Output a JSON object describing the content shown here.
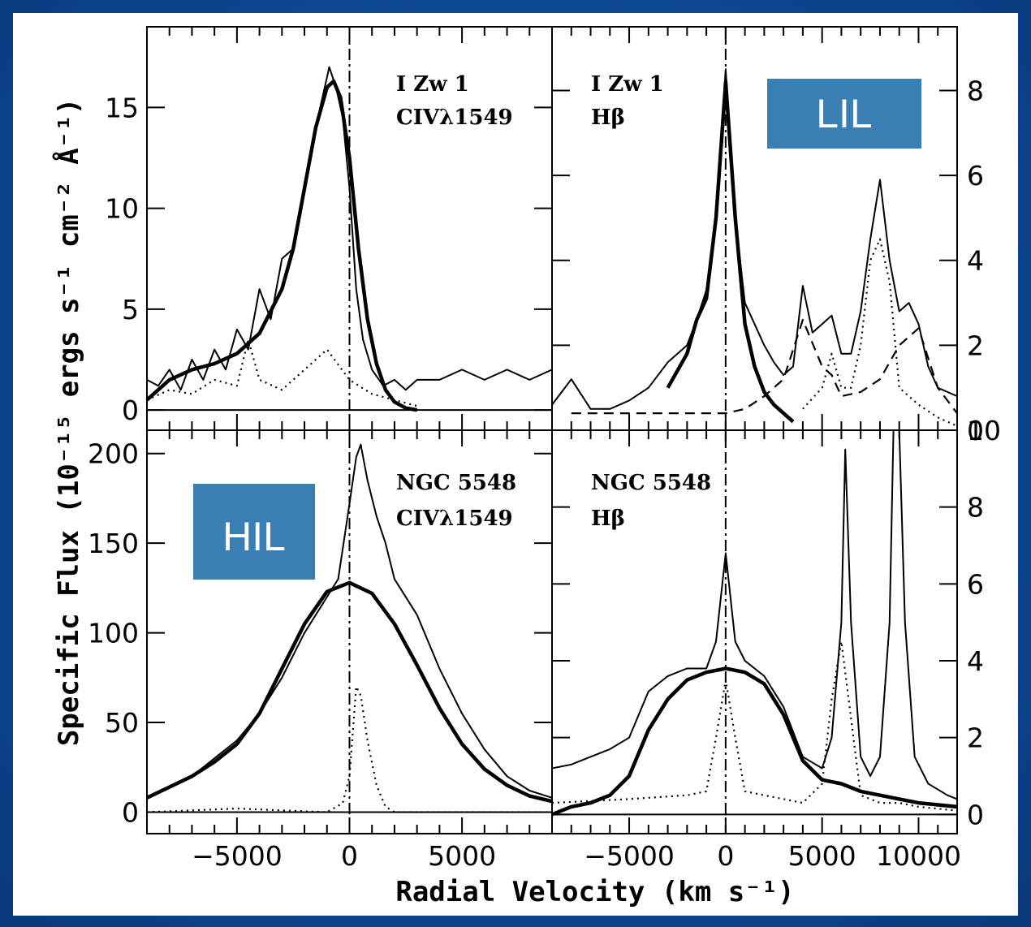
{
  "chart_data": [
    {
      "type": "line",
      "panel": "top-left",
      "annotation": [
        "I Zw 1",
        "CIVλ1549"
      ],
      "xlim": [
        -9000,
        9000
      ],
      "ylim": [
        -1,
        19
      ],
      "yticks": [
        0,
        5,
        10,
        15
      ],
      "series": [
        {
          "style": "thin",
          "x": [
            -9000,
            -8500,
            -8000,
            -7500,
            -7000,
            -6500,
            -6000,
            -5500,
            -5000,
            -4500,
            -4000,
            -3500,
            -3000,
            -2500,
            -2000,
            -1500,
            -1200,
            -900,
            -600,
            -300,
            0,
            300,
            600,
            1000,
            1500,
            2000,
            2500,
            3000,
            4000,
            5000,
            6000,
            7000,
            8000,
            9000
          ],
          "y": [
            1.5,
            1.2,
            2.0,
            1.0,
            2.5,
            1.5,
            3.0,
            2.0,
            4.0,
            3.0,
            6.0,
            4.5,
            7.5,
            8.0,
            11.0,
            14.0,
            15.5,
            17.0,
            16.0,
            14.5,
            11.0,
            6.0,
            3.5,
            2.0,
            1.2,
            1.5,
            1.0,
            1.5,
            1.5,
            2.0,
            1.5,
            2.0,
            1.5,
            2.0
          ]
        },
        {
          "style": "thick",
          "x": [
            -9000,
            -8000,
            -7000,
            -6000,
            -5000,
            -4000,
            -3000,
            -2500,
            -2000,
            -1500,
            -1000,
            -700,
            -400,
            0,
            400,
            800,
            1200,
            1600,
            2000,
            2500,
            3000
          ],
          "y": [
            0.5,
            1.5,
            2.0,
            2.3,
            2.8,
            3.8,
            6.0,
            8.0,
            11.0,
            14.0,
            16.0,
            16.3,
            15.5,
            12.5,
            8.0,
            4.5,
            2.3,
            1.0,
            0.4,
            0.1,
            0.0
          ]
        },
        {
          "style": "dotted",
          "x": [
            -9000,
            -8000,
            -7000,
            -6000,
            -5000,
            -4500,
            -4000,
            -3000,
            -2000,
            -1000,
            0,
            1000,
            2000,
            3000
          ],
          "y": [
            0.5,
            1.0,
            0.8,
            1.5,
            1.2,
            3.5,
            1.5,
            1.0,
            2.0,
            3.0,
            1.5,
            0.8,
            0.5,
            0.2
          ]
        }
      ]
    },
    {
      "type": "line",
      "panel": "top-right",
      "annotation": [
        "I Zw 1",
        "Hβ"
      ],
      "xlim": [
        -9000,
        12000
      ],
      "ylim": [
        0,
        9.5
      ],
      "yticks": [
        0,
        2,
        4,
        6,
        8
      ],
      "series": [
        {
          "style": "thin",
          "x": [
            -9000,
            -8000,
            -7000,
            -6000,
            -5000,
            -4000,
            -3000,
            -2000,
            -1500,
            -1000,
            -500,
            0,
            500,
            1000,
            1500,
            2000,
            2500,
            3000,
            3500,
            4000,
            4500,
            5000,
            5500,
            6000,
            6500,
            7000,
            7500,
            8000,
            8500,
            9000,
            9500,
            10000,
            10500,
            11000,
            12000
          ],
          "y": [
            0.6,
            1.2,
            0.5,
            0.5,
            0.7,
            1.0,
            1.6,
            2.0,
            2.6,
            3.3,
            5.0,
            8.5,
            5.0,
            3.0,
            2.5,
            2.0,
            1.6,
            1.3,
            1.5,
            3.4,
            2.3,
            2.5,
            2.7,
            1.8,
            1.8,
            2.8,
            4.5,
            5.9,
            4.0,
            2.8,
            3.0,
            2.5,
            1.5,
            1.0,
            0.8
          ]
        },
        {
          "style": "thick",
          "x": [
            -3000,
            -2000,
            -1500,
            -1000,
            -500,
            0,
            500,
            1000,
            1500,
            2000,
            2500,
            3000,
            3500
          ],
          "y": [
            1.0,
            1.8,
            2.6,
            3.1,
            5.0,
            8.2,
            5.0,
            2.5,
            1.5,
            0.9,
            0.6,
            0.4,
            0.2
          ]
        },
        {
          "style": "dashed",
          "x": [
            -8000,
            -6000,
            -4000,
            -2000,
            0,
            1000,
            2000,
            3000,
            4000,
            5000,
            5500,
            6000,
            7000,
            8000,
            9000,
            10000,
            11000,
            12000
          ],
          "y": [
            0.4,
            0.4,
            0.4,
            0.4,
            0.4,
            0.5,
            0.8,
            1.2,
            2.6,
            1.5,
            1.3,
            0.8,
            0.9,
            1.2,
            2.0,
            2.4,
            1.0,
            0.4
          ]
        },
        {
          "style": "dotted",
          "x": [
            4000,
            5000,
            5500,
            6000,
            6500,
            7000,
            7500,
            8000,
            8500,
            9000,
            10000,
            11000,
            12000
          ],
          "y": [
            0.5,
            1.0,
            1.8,
            1.0,
            1.0,
            2.0,
            4.0,
            4.5,
            3.5,
            1.0,
            0.6,
            0.3,
            0.1
          ]
        }
      ]
    },
    {
      "type": "line",
      "panel": "bottom-left",
      "annotation": [
        "NGC 5548",
        "CIVλ1549"
      ],
      "xlim": [
        -9000,
        9000
      ],
      "ylim": [
        -12,
        213
      ],
      "yticks": [
        0,
        50,
        100,
        150,
        200
      ],
      "series": [
        {
          "style": "thin",
          "x": [
            -9000,
            -8000,
            -7000,
            -6000,
            -5000,
            -4000,
            -3000,
            -2000,
            -1000,
            -500,
            0,
            300,
            500,
            800,
            1200,
            1600,
            2000,
            3000,
            4000,
            5000,
            6000,
            7000,
            8000,
            9000
          ],
          "y": [
            8,
            14,
            20,
            30,
            40,
            55,
            75,
            100,
            120,
            130,
            172,
            198,
            205,
            185,
            165,
            150,
            130,
            110,
            80,
            55,
            35,
            20,
            12,
            8
          ]
        },
        {
          "style": "thick",
          "x": [
            -9000,
            -8000,
            -7000,
            -6000,
            -5000,
            -4000,
            -3000,
            -2000,
            -1000,
            0,
            1000,
            2000,
            3000,
            4000,
            5000,
            6000,
            7000,
            8000,
            9000
          ],
          "y": [
            8,
            14,
            20,
            28,
            38,
            55,
            80,
            105,
            123,
            128,
            122,
            105,
            82,
            58,
            38,
            24,
            15,
            9,
            6
          ]
        },
        {
          "style": "dotted",
          "x": [
            -9000,
            -5000,
            -1000,
            -300,
            0,
            300,
            500,
            800,
            1200,
            1600,
            2000,
            4000,
            9000
          ],
          "y": [
            0,
            2,
            0,
            5,
            20,
            70,
            65,
            40,
            15,
            3,
            0,
            0,
            0
          ]
        }
      ]
    },
    {
      "type": "line",
      "panel": "bottom-right",
      "annotation": [
        "NGC 5548",
        "Hβ"
      ],
      "xlim": [
        -9000,
        12000
      ],
      "ylim": [
        -0.5,
        10
      ],
      "yticks": [
        0,
        2,
        4,
        6,
        8,
        10
      ],
      "series": [
        {
          "style": "thin",
          "x": [
            -9000,
            -8000,
            -7000,
            -6000,
            -5000,
            -4000,
            -3000,
            -2000,
            -1000,
            -500,
            0,
            500,
            1000,
            2000,
            3000,
            4000,
            5000,
            5500,
            6000,
            6200,
            6500,
            7000,
            7500,
            8000,
            8500,
            8700,
            9000,
            9300,
            9800,
            10500,
            11500,
            12000
          ],
          "y": [
            1.2,
            1.3,
            1.5,
            1.7,
            2.0,
            3.2,
            3.6,
            3.8,
            3.8,
            4.5,
            6.8,
            4.5,
            4.0,
            3.6,
            2.8,
            1.5,
            1.2,
            2.0,
            5.0,
            9.5,
            5.0,
            1.5,
            1.0,
            1.5,
            5.0,
            10.0,
            10.0,
            5.0,
            1.5,
            0.8,
            0.5,
            0.4
          ]
        },
        {
          "style": "thick",
          "x": [
            -9000,
            -8000,
            -7000,
            -6000,
            -5000,
            -4000,
            -3000,
            -2000,
            -1000,
            0,
            1000,
            2000,
            3000,
            4000,
            5000,
            6000,
            7000,
            8000,
            9000,
            10000,
            11000,
            12000
          ],
          "y": [
            0.0,
            0.2,
            0.3,
            0.5,
            1.0,
            2.2,
            3.0,
            3.5,
            3.7,
            3.8,
            3.7,
            3.4,
            2.6,
            1.4,
            0.9,
            0.8,
            0.6,
            0.5,
            0.4,
            0.3,
            0.25,
            0.2
          ]
        },
        {
          "style": "dotted",
          "x": [
            -9000,
            -5000,
            -2000,
            -1000,
            -500,
            0,
            500,
            1000,
            2000,
            4000,
            5000,
            5500,
            6000,
            6500,
            7000,
            8000,
            9000,
            10000,
            12000
          ],
          "y": [
            0.3,
            0.4,
            0.5,
            0.6,
            2.0,
            3.5,
            2.0,
            0.6,
            0.5,
            0.3,
            0.8,
            3.0,
            4.5,
            2.5,
            0.5,
            0.3,
            0.3,
            0.2,
            0.1
          ]
        }
      ]
    }
  ],
  "x_tick_labels": {
    "left": [
      "−5000",
      "0",
      "5000"
    ],
    "right": [
      "−5000",
      "0",
      "5000",
      "10000"
    ]
  },
  "xlabel": "Radial Velocity (km s⁻¹)",
  "ylabel": "Specific Flux (10⁻¹⁵ ergs s⁻¹ cm⁻² Å⁻¹)",
  "overlays": {
    "lil_label": "LIL",
    "hil_label": "HIL",
    "box_color": "#3a7fb3"
  },
  "colors": {
    "slide_background": "#0e4a95",
    "plot_line": "#000000"
  }
}
